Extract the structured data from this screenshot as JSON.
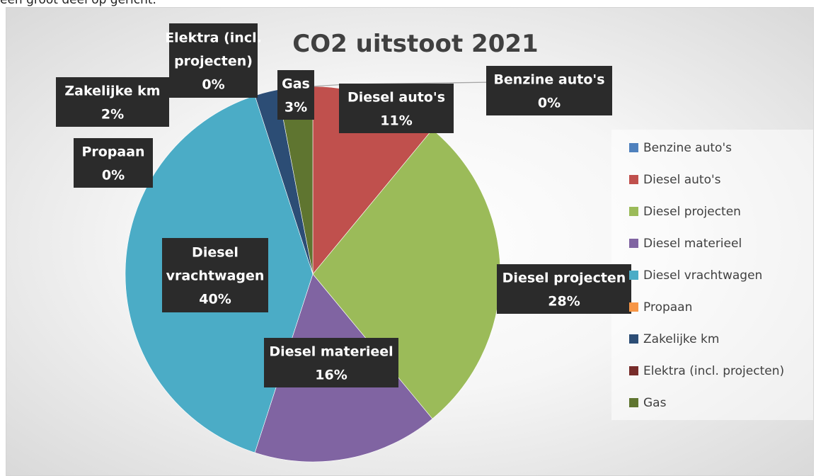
{
  "caption": "een groot deel op gericht.",
  "chart_data": {
    "type": "pie",
    "title": "CO2 uitstoot 2021",
    "legend_position": "right",
    "series": [
      {
        "name": "Benzine auto's",
        "value": 0,
        "label": "0%",
        "color": "#4f81bd",
        "label_lines": [
          "Benzine auto's",
          "0%"
        ]
      },
      {
        "name": "Diesel auto's",
        "value": 11,
        "label": "11%",
        "color": "#c0504d",
        "label_lines": [
          "Diesel auto's",
          "11%"
        ]
      },
      {
        "name": "Diesel projecten",
        "value": 28,
        "label": "28%",
        "color": "#9bbb59",
        "label_lines": [
          "Diesel projecten",
          "28%"
        ]
      },
      {
        "name": "Diesel materieel",
        "value": 16,
        "label": "16%",
        "color": "#8064a2",
        "label_lines": [
          "Diesel materieel",
          "16%"
        ]
      },
      {
        "name": "Diesel vrachtwagen",
        "value": 40,
        "label": "40%",
        "color": "#4bacc6",
        "label_lines": [
          "Diesel",
          "vrachtwagen",
          "40%"
        ]
      },
      {
        "name": "Propaan",
        "value": 0,
        "label": "0%",
        "color": "#f79646",
        "label_lines": [
          "Propaan",
          "0%"
        ]
      },
      {
        "name": "Zakelijke km",
        "value": 2,
        "label": "2%",
        "color": "#2c4d75",
        "label_lines": [
          "Zakelijke km",
          "2%"
        ]
      },
      {
        "name": "Elektra (incl. projecten)",
        "value": 0,
        "label": "0%",
        "color": "#772c2a",
        "label_lines": [
          "Elektra (incl.",
          "projecten)",
          "0%"
        ]
      },
      {
        "name": "Gas",
        "value": 3,
        "label": "3%",
        "color": "#5f7530",
        "label_lines": [
          "Gas",
          "3%"
        ]
      }
    ]
  }
}
